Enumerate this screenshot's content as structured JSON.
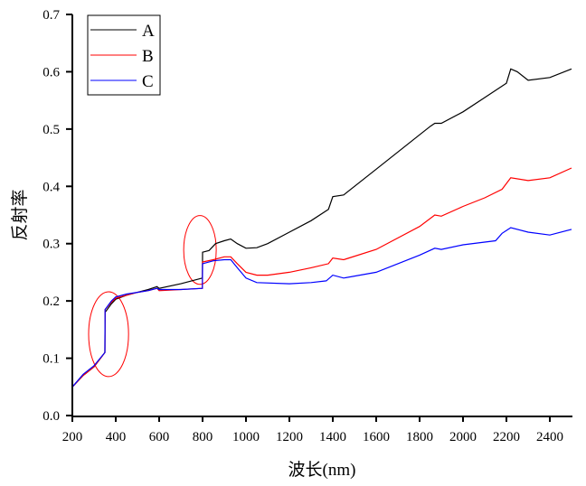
{
  "chart_data": {
    "type": "line",
    "title": "",
    "xlabel": "波长(nm)",
    "ylabel": "反射率",
    "xlim": [
      200,
      2500
    ],
    "ylim": [
      0,
      0.7
    ],
    "xticks": [
      200,
      400,
      600,
      800,
      1000,
      1200,
      1400,
      1600,
      1800,
      2000,
      2200,
      2400
    ],
    "yticks": [
      "0.0",
      "0.1",
      "0.2",
      "0.3",
      "0.4",
      "0.5",
      "0.6",
      "0.7"
    ],
    "grid": false,
    "legend_position": "top-left",
    "series": [
      {
        "name": "A",
        "color": "#000000",
        "x": [
          200,
          250,
          300,
          350,
          351,
          380,
          400,
          450,
          500,
          550,
          590,
          600,
          700,
          799,
          800,
          830,
          860,
          900,
          930,
          960,
          1000,
          1050,
          1100,
          1200,
          1300,
          1380,
          1400,
          1450,
          1600,
          1800,
          1850,
          1870,
          1900,
          2000,
          2100,
          2200,
          2220,
          2250,
          2300,
          2400,
          2500
        ],
        "y": [
          0.05,
          0.07,
          0.085,
          0.11,
          0.18,
          0.195,
          0.203,
          0.21,
          0.215,
          0.22,
          0.225,
          0.222,
          0.23,
          0.24,
          0.285,
          0.288,
          0.3,
          0.305,
          0.308,
          0.3,
          0.292,
          0.293,
          0.3,
          0.32,
          0.34,
          0.36,
          0.382,
          0.385,
          0.43,
          0.49,
          0.505,
          0.51,
          0.51,
          0.53,
          0.555,
          0.58,
          0.605,
          0.6,
          0.585,
          0.59,
          0.605
        ]
      },
      {
        "name": "B",
        "color": "#ff0000",
        "x": [
          200,
          250,
          300,
          350,
          351,
          380,
          400,
          450,
          500,
          550,
          590,
          600,
          700,
          799,
          800,
          850,
          900,
          930,
          960,
          1000,
          1050,
          1100,
          1200,
          1300,
          1380,
          1400,
          1450,
          1600,
          1800,
          1870,
          1900,
          2000,
          2100,
          2180,
          2220,
          2300,
          2400,
          2500
        ],
        "y": [
          0.05,
          0.07,
          0.085,
          0.11,
          0.185,
          0.198,
          0.205,
          0.21,
          0.215,
          0.218,
          0.222,
          0.218,
          0.22,
          0.222,
          0.268,
          0.272,
          0.277,
          0.277,
          0.265,
          0.25,
          0.245,
          0.245,
          0.25,
          0.258,
          0.265,
          0.275,
          0.272,
          0.29,
          0.33,
          0.35,
          0.348,
          0.365,
          0.38,
          0.395,
          0.415,
          0.41,
          0.415,
          0.432
        ]
      },
      {
        "name": "C",
        "color": "#0000ff",
        "x": [
          200,
          250,
          300,
          350,
          351,
          380,
          400,
          450,
          500,
          550,
          590,
          600,
          700,
          799,
          800,
          850,
          900,
          930,
          960,
          1000,
          1050,
          1200,
          1300,
          1370,
          1400,
          1450,
          1600,
          1800,
          1870,
          1900,
          2000,
          2150,
          2180,
          2220,
          2300,
          2400,
          2500
        ],
        "y": [
          0.05,
          0.072,
          0.087,
          0.11,
          0.185,
          0.2,
          0.207,
          0.212,
          0.215,
          0.218,
          0.222,
          0.22,
          0.22,
          0.222,
          0.265,
          0.27,
          0.272,
          0.272,
          0.258,
          0.24,
          0.232,
          0.23,
          0.232,
          0.235,
          0.245,
          0.24,
          0.25,
          0.28,
          0.292,
          0.29,
          0.298,
          0.305,
          0.318,
          0.328,
          0.32,
          0.315,
          0.325
        ]
      }
    ],
    "annotations": [
      {
        "type": "ellipse",
        "color": "#ff0000",
        "center": [
          367,
          0.142
        ],
        "radius": [
          92,
          0.074
        ]
      },
      {
        "type": "ellipse",
        "color": "#ff0000",
        "center": [
          788,
          0.289
        ],
        "radius": [
          75,
          0.06
        ]
      }
    ]
  }
}
